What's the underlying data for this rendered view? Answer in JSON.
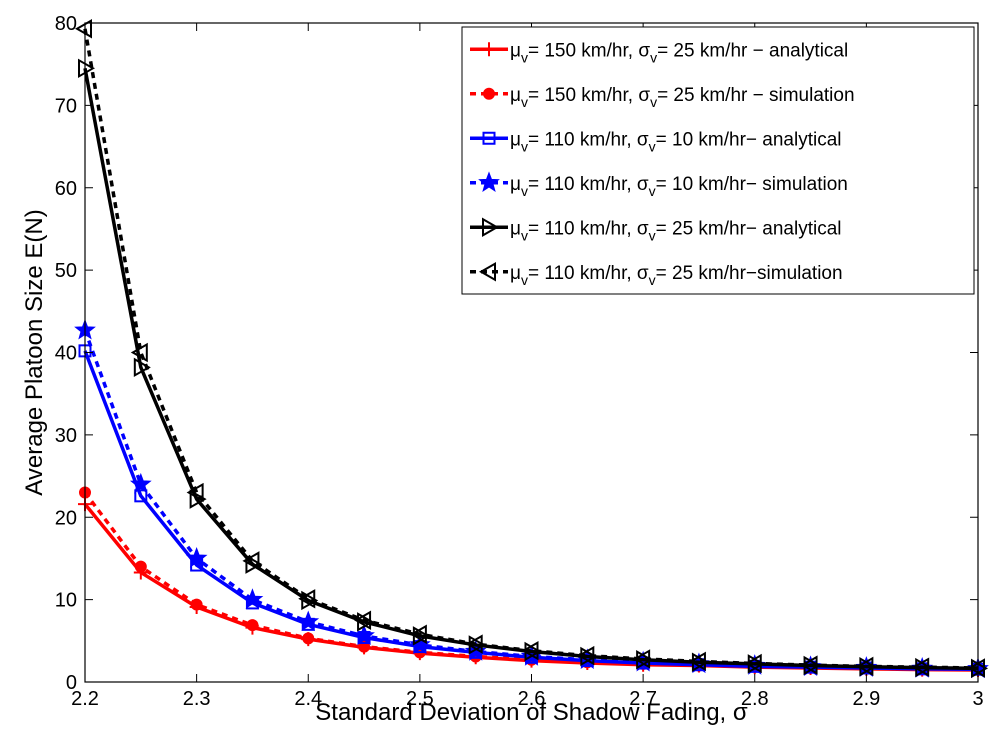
{
  "chart_data": {
    "type": "line",
    "xlabel": "Standard Deviation of Shadow Fading, σ",
    "ylabel": "Average Platoon Size E(N)",
    "xlim": [
      2.2,
      3.0
    ],
    "ylim": [
      0,
      80
    ],
    "xticks": [
      2.2,
      2.3,
      2.4,
      2.5,
      2.6,
      2.7,
      2.8,
      2.9,
      3.0
    ],
    "xtick_labels": [
      "2.2",
      "2.3",
      "2.4",
      "2.5",
      "2.6",
      "2.7",
      "2.8",
      "2.9",
      "3"
    ],
    "yticks": [
      0,
      10,
      20,
      30,
      40,
      50,
      60,
      70,
      80
    ],
    "ytick_labels": [
      "0",
      "10",
      "20",
      "30",
      "40",
      "50",
      "60",
      "70",
      "80"
    ],
    "grid": false,
    "legend_position": "top-right",
    "x": [
      2.2,
      2.25,
      2.3,
      2.35,
      2.4,
      2.45,
      2.5,
      2.55,
      2.6,
      2.65,
      2.7,
      2.75,
      2.8,
      2.85,
      2.9,
      2.95,
      3.0
    ],
    "series": [
      {
        "name": "μv= 150 km/hr, σv= 25 km/hr − analytical",
        "legend": {
          "mu_sub": "v",
          "mu_rest": "= 150 km/hr, ",
          "sigma_sub": "v",
          "sigma_rest": "= 25 km/hr − analytical"
        },
        "color": "#ff0000",
        "dashed": false,
        "marker": "plus",
        "values": [
          21.6,
          13.3,
          9.1,
          6.6,
          5.2,
          4.2,
          3.5,
          3.0,
          2.6,
          2.3,
          2.1,
          2.0,
          1.8,
          1.7,
          1.6,
          1.5,
          1.45
        ]
      },
      {
        "name": "μv= 150 km/hr, σv= 25 km/hr − simulation",
        "legend": {
          "mu_sub": "v",
          "mu_rest": "= 150 km/hr, ",
          "sigma_sub": "v",
          "sigma_rest": "= 25 km/hr − simulation"
        },
        "color": "#ff0000",
        "dashed": true,
        "marker": "dot",
        "values": [
          23.0,
          14.0,
          9.4,
          6.9,
          5.3,
          4.3,
          3.6,
          3.1,
          2.7,
          2.4,
          2.2,
          2.0,
          1.9,
          1.75,
          1.65,
          1.55,
          1.5
        ]
      },
      {
        "name": "μv= 110 km/hr, σv= 10 km/hr− analytical",
        "legend": {
          "mu_sub": "v",
          "mu_rest": "= 110 km/hr, ",
          "sigma_sub": "v",
          "sigma_rest": "= 10 km/hr− analytical"
        },
        "color": "#0000ff",
        "dashed": false,
        "marker": "square",
        "values": [
          40.2,
          22.6,
          14.2,
          9.6,
          7.0,
          5.4,
          4.3,
          3.6,
          3.0,
          2.6,
          2.3,
          2.1,
          1.9,
          1.8,
          1.7,
          1.6,
          1.55
        ]
      },
      {
        "name": "μv= 110 km/hr, σv= 10 km/hr− simulation",
        "legend": {
          "mu_sub": "v",
          "mu_rest": "= 110 km/hr, ",
          "sigma_sub": "v",
          "sigma_rest": "= 10 km/hr− simulation"
        },
        "color": "#0000ff",
        "dashed": true,
        "marker": "star",
        "values": [
          42.7,
          24.0,
          15.0,
          10.0,
          7.3,
          5.6,
          4.5,
          3.7,
          3.1,
          2.7,
          2.4,
          2.2,
          2.0,
          1.85,
          1.75,
          1.65,
          1.6
        ]
      },
      {
        "name": "μv= 110 km/hr, σv= 25 km/hr− analytical",
        "legend": {
          "mu_sub": "v",
          "mu_rest": "= 110 km/hr, ",
          "sigma_sub": "v",
          "sigma_rest": "= 25 km/hr− analytical"
        },
        "color": "#000000",
        "dashed": false,
        "marker": "tri-right",
        "values": [
          74.5,
          38.2,
          22.2,
          14.3,
          9.9,
          7.3,
          5.6,
          4.5,
          3.7,
          3.1,
          2.7,
          2.4,
          2.2,
          2.0,
          1.85,
          1.75,
          1.65
        ]
      },
      {
        "name": "μv= 110 km/hr, σv= 25 km/hr−simulation",
        "legend": {
          "mu_sub": "v",
          "mu_rest": "= 110 km/hr, ",
          "sigma_sub": "v",
          "sigma_rest": "= 25 km/hr−simulation"
        },
        "color": "#000000",
        "dashed": true,
        "marker": "tri-left",
        "values": [
          79.3,
          40.0,
          23.0,
          14.7,
          10.1,
          7.5,
          5.8,
          4.6,
          3.8,
          3.2,
          2.8,
          2.5,
          2.25,
          2.05,
          1.9,
          1.8,
          1.7
        ]
      }
    ]
  }
}
